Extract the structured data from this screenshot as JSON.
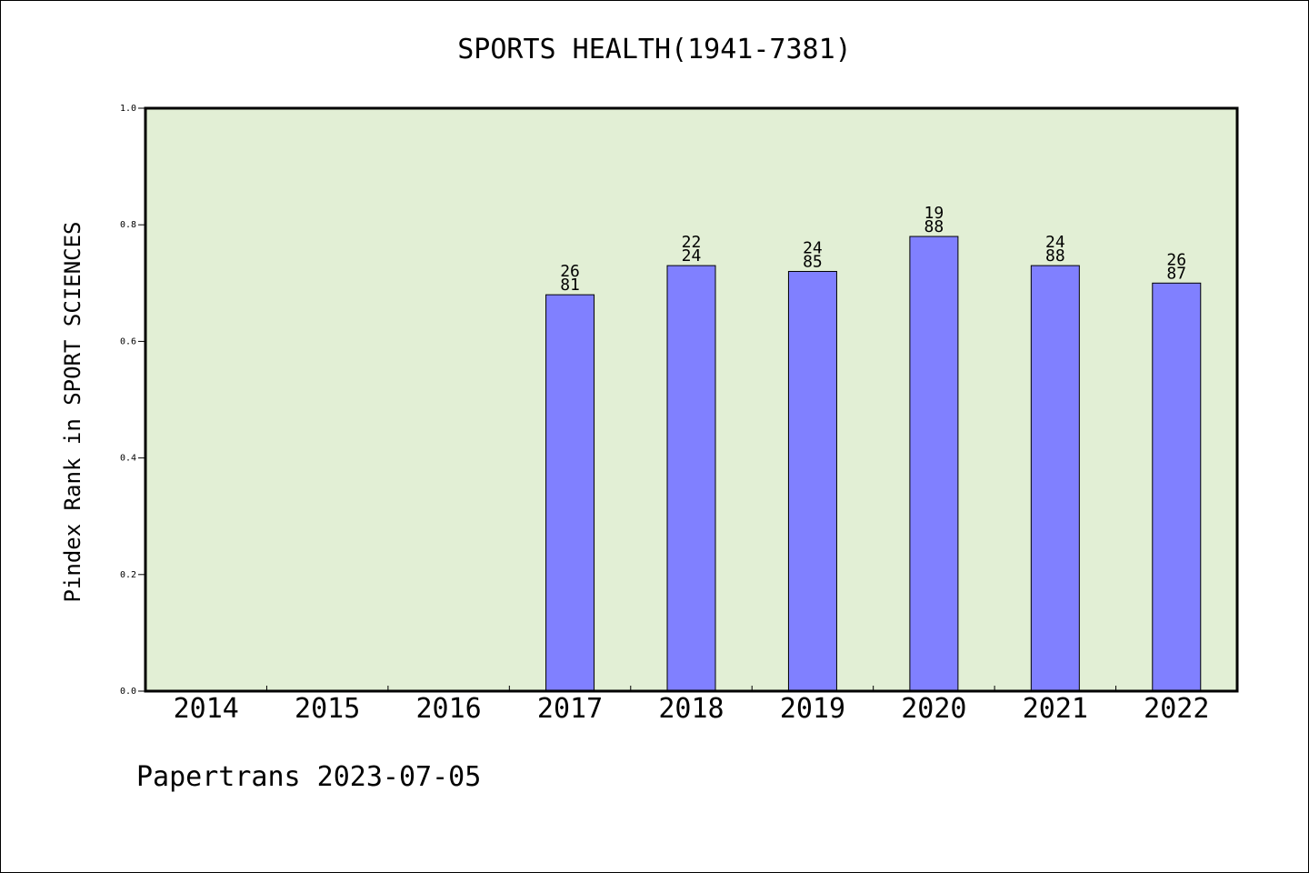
{
  "credit": "Papertrans 2023-07-05",
  "chart_data": {
    "type": "bar",
    "title": "SPORTS HEALTH(1941-7381)",
    "xlabel": "",
    "ylabel": "Pindex Rank in SPORT SCIENCES",
    "ylim": [
      0,
      1
    ],
    "yticks": [
      "0.0",
      "0.2",
      "0.4",
      "0.6",
      "0.8",
      "1.0"
    ],
    "categories": [
      "2014",
      "2015",
      "2016",
      "2017",
      "2018",
      "2019",
      "2020",
      "2021",
      "2022"
    ],
    "values": [
      null,
      null,
      null,
      0.68,
      0.73,
      0.72,
      0.78,
      0.73,
      0.7
    ],
    "bar_labels": [
      null,
      null,
      null,
      [
        "26",
        "81"
      ],
      [
        "22",
        "24"
      ],
      [
        "24",
        "85"
      ],
      [
        "19",
        "88"
      ],
      [
        "24",
        "88"
      ],
      [
        "26",
        "87"
      ]
    ],
    "grid": false,
    "colors": {
      "plot_background": "#e2efd5",
      "bar": "#8080ff"
    }
  }
}
